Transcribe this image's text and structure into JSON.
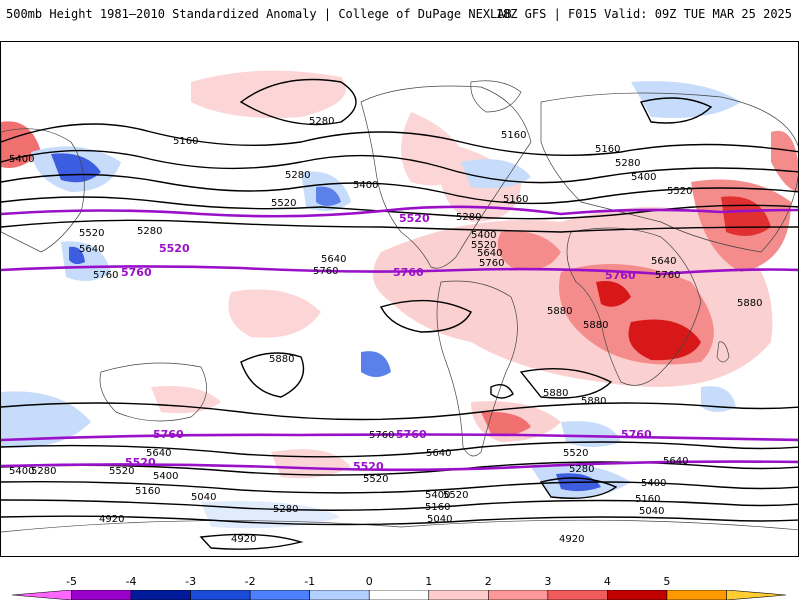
{
  "header": {
    "left_title": "500mb Height 1981–2010 Standardized Anomaly | College of DuPage NEXLAB",
    "right_title": "18Z GFS | F015 Valid: 09Z TUE MAR 25 2025"
  },
  "colors": {
    "climo_contour": "#9a10c8",
    "height_contour": "#000000",
    "anomaly_neg_strong": "#3c5de0",
    "anomaly_neg_mid": "#7b9cf0",
    "anomaly_neg_weak": "#c6dcfa",
    "anomaly_pos_weak": "#fbd0d0",
    "anomaly_pos_mid": "#f07070",
    "anomaly_pos_strong": "#d81818"
  },
  "colorbar": {
    "ticks": [
      "-5",
      "-4",
      "-3",
      "-2",
      "-1",
      "0",
      "1",
      "2",
      "3",
      "4",
      "5"
    ],
    "bins": [
      {
        "color": "#ff66ff"
      },
      {
        "color": "#9900cc"
      },
      {
        "color": "#001a99"
      },
      {
        "color": "#1a4cd9"
      },
      {
        "color": "#4d80ff"
      },
      {
        "color": "#b3cfff"
      },
      {
        "color": "#ffffff"
      },
      {
        "color": "#ffcccc"
      },
      {
        "color": "#ff9999"
      },
      {
        "color": "#f25b5b"
      },
      {
        "color": "#c20000"
      },
      {
        "color": "#ff9900"
      },
      {
        "color": "#ffcc33"
      }
    ]
  },
  "map": {
    "projection": "global cylindrical",
    "height_labels": [
      "5280",
      "5160",
      "5400",
      "5280",
      "5520",
      "5400",
      "5520",
      "5280",
      "5640",
      "5760",
      "5640",
      "5760",
      "5160",
      "5280",
      "5400",
      "5520",
      "5640",
      "5760",
      "5160",
      "5160",
      "5280",
      "5400",
      "5520",
      "5640",
      "5760",
      "5880",
      "5880",
      "5880",
      "5880",
      "5880",
      "5880",
      "5400",
      "5640",
      "5760",
      "5520",
      "5400",
      "5280",
      "5160",
      "5040",
      "4920",
      "5520",
      "5640",
      "5520",
      "5400",
      "5160",
      "5040",
      "5280",
      "5520",
      "5280",
      "5640",
      "5400",
      "5160",
      "5040",
      "4920",
      "4920",
      "4920"
    ],
    "climatology_labels": [
      "5520",
      "5760",
      "5760",
      "5520",
      "5760",
      "5760",
      "5760",
      "5760",
      "5520",
      "5520"
    ]
  }
}
